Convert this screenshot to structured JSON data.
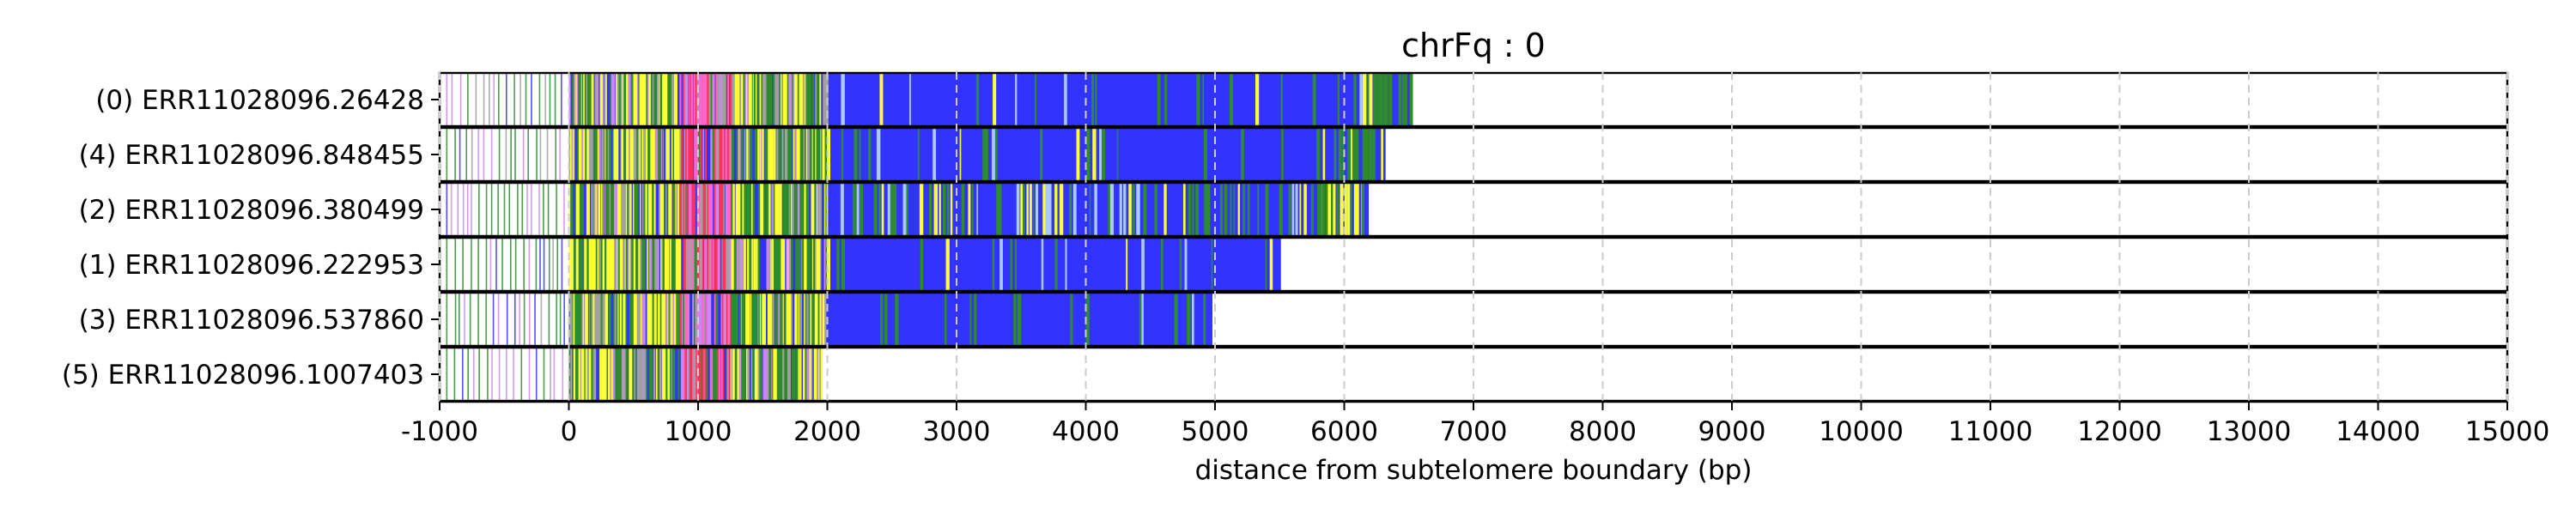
{
  "chart_data": {
    "type": "bar",
    "title": "chrFq : 0",
    "xlabel": "distance from subtelomere boundary (bp)",
    "ylabel": "",
    "xlim": [
      -1000,
      15000
    ],
    "xticks": [
      "-1000",
      "0",
      "1000",
      "2000",
      "3000",
      "4000",
      "5000",
      "6000",
      "7000",
      "8000",
      "9000",
      "10000",
      "11000",
      "12000",
      "13000",
      "14000",
      "15000"
    ],
    "grid": "vertical dashed gridlines at major ticks",
    "colors": {
      "repeat_main": "#3333ff",
      "green": "#2e8b2e",
      "yellow": "#ffff33",
      "pink": "#ff66cc",
      "violet": "#cc88ee",
      "grey": "#a0a0a0",
      "red": "#ff3355"
    },
    "reads": [
      {
        "label": "(0) ERR11028096.26428",
        "start": -950,
        "end": 6520
      },
      {
        "label": "(4) ERR11028096.848455",
        "start": -950,
        "end": 6320
      },
      {
        "label": "(2) ERR11028096.380499",
        "start": -950,
        "end": 6190
      },
      {
        "label": "(1) ERR11028096.222953",
        "start": -950,
        "end": 5510
      },
      {
        "label": "(3) ERR11028096.537860",
        "start": -950,
        "end": 4980
      },
      {
        "label": "(5) ERR11028096.1007403",
        "start": -950,
        "end": 1950
      }
    ]
  }
}
